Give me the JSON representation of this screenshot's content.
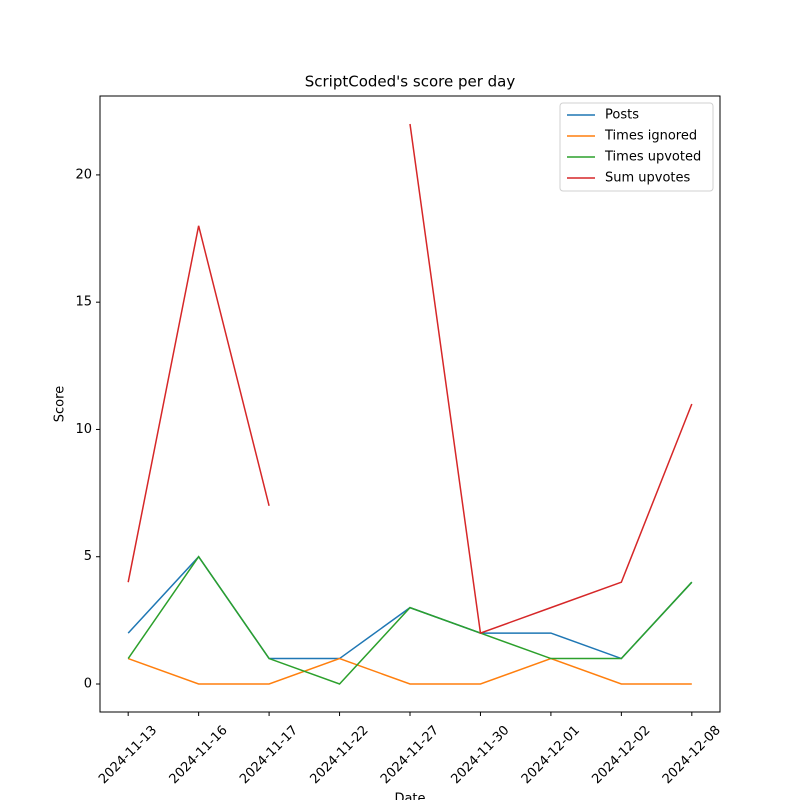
{
  "chart_data": {
    "type": "line",
    "title": "ScriptCoded's score per day",
    "xlabel": "Date",
    "ylabel": "Score",
    "categories": [
      "2024-11-13",
      "2024-11-16",
      "2024-11-17",
      "2024-11-22",
      "2024-11-27",
      "2024-11-30",
      "2024-12-01",
      "2024-12-02",
      "2024-12-08"
    ],
    "series": [
      {
        "name": "Posts",
        "color": "#1f77b4",
        "values": [
          2,
          5,
          1,
          1,
          3,
          2,
          2,
          1,
          4
        ]
      },
      {
        "name": "Times ignored",
        "color": "#ff7f0e",
        "values": [
          1,
          0,
          0,
          1,
          0,
          0,
          1,
          0,
          0
        ]
      },
      {
        "name": "Times upvoted",
        "color": "#2ca02c",
        "values": [
          1,
          5,
          1,
          0,
          3,
          2,
          1,
          1,
          4
        ]
      },
      {
        "name": "Sum upvotes",
        "color": "#d62728",
        "values": [
          4,
          18,
          7,
          null,
          22,
          2,
          3,
          4,
          11
        ]
      }
    ],
    "ylim": [
      -1.1,
      23.1
    ],
    "yticks": [
      0,
      5,
      10,
      15,
      20
    ],
    "legend": "upper right",
    "grid": false
  }
}
